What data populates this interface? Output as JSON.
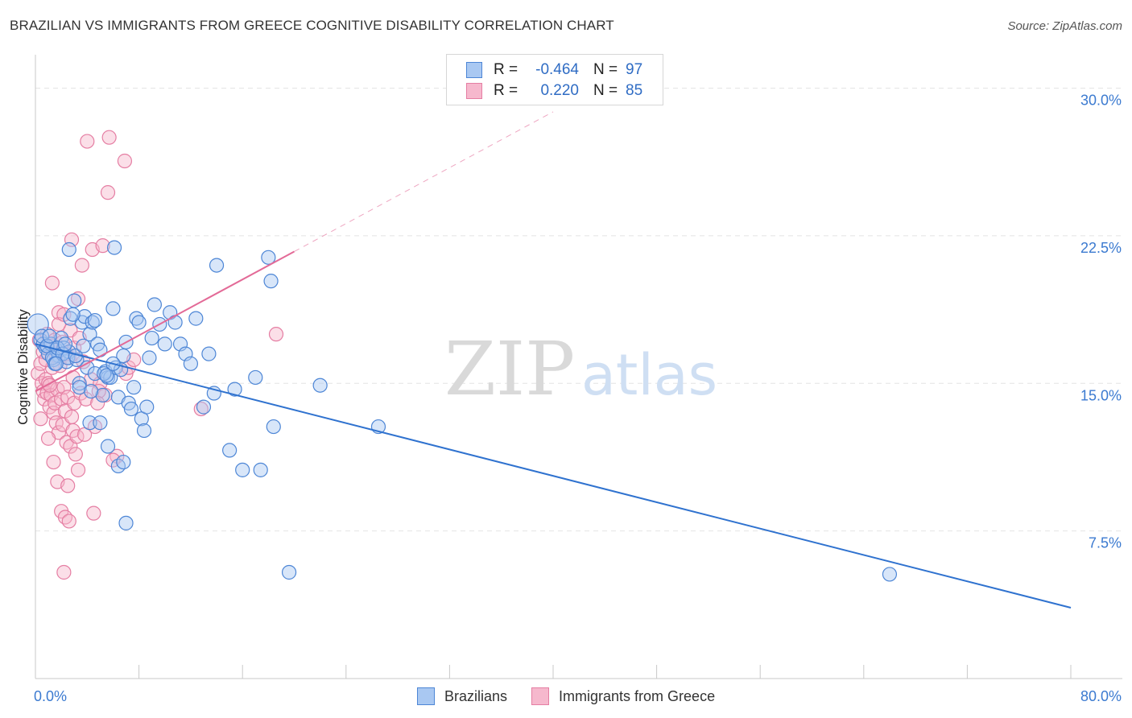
{
  "title": "BRAZILIAN VS IMMIGRANTS FROM GREECE COGNITIVE DISABILITY CORRELATION CHART",
  "source": "Source: ZipAtlas.com",
  "watermark": {
    "zip": "ZIP",
    "atlas": "atlas"
  },
  "legend": {
    "rows": [
      {
        "r_label": "R =",
        "r_value": "-0.464",
        "n_label": "N =",
        "n_value": "97"
      },
      {
        "r_label": "R =",
        "r_value": "0.220",
        "n_label": "N =",
        "n_value": "85"
      }
    ]
  },
  "colors": {
    "blue_fill": "#a9c8f2",
    "blue_stroke": "#4d86d6",
    "blue_line": "#2f72cf",
    "pink_fill": "#f6b8cd",
    "pink_stroke": "#e57ea3",
    "pink_line": "#e36a97",
    "grid": "#e4e4e4",
    "tick_text": "#3b7ad0"
  },
  "chart_data": {
    "type": "scatter",
    "title": "BRAZILIAN VS IMMIGRANTS FROM GREECE COGNITIVE DISABILITY CORRELATION CHART",
    "xlabel": "",
    "ylabel": "Cognitive Disability",
    "xlim": [
      0,
      80
    ],
    "ylim": [
      0,
      31.7
    ],
    "x_tick_labels": [
      {
        "value": 0,
        "label": "0.0%"
      },
      {
        "value": 80,
        "label": "80.0%"
      }
    ],
    "y_tick_labels": [
      {
        "value": 7.5,
        "label": "7.5%"
      },
      {
        "value": 15.0,
        "label": "15.0%"
      },
      {
        "value": 22.5,
        "label": "22.5%"
      },
      {
        "value": 30.0,
        "label": "30.0%"
      }
    ],
    "grid": true,
    "legend_position": "top-center",
    "series": [
      {
        "name": "Brazilians",
        "r": -0.464,
        "n": 97,
        "trend": {
          "x0": 0,
          "y0": 17.0,
          "x1": 80,
          "y1": 3.6
        },
        "points": [
          [
            0.2,
            18.0
          ],
          [
            0.4,
            17.2
          ],
          [
            0.6,
            17.0
          ],
          [
            0.8,
            16.8
          ],
          [
            1.0,
            16.5
          ],
          [
            1.2,
            17.0
          ],
          [
            1.4,
            16.2
          ],
          [
            1.6,
            16.7
          ],
          [
            1.8,
            16.4
          ],
          [
            2.0,
            17.3
          ],
          [
            2.2,
            16.8
          ],
          [
            2.4,
            16.1
          ],
          [
            2.6,
            16.6
          ],
          [
            0.5,
            17.4
          ],
          [
            0.9,
            16.9
          ],
          [
            1.1,
            17.4
          ],
          [
            1.3,
            16.3
          ],
          [
            1.5,
            16.0
          ],
          [
            1.7,
            16.8
          ],
          [
            2.1,
            16.5
          ],
          [
            2.3,
            17.0
          ],
          [
            2.5,
            16.3
          ],
          [
            2.7,
            18.3
          ],
          [
            3.0,
            19.2
          ],
          [
            3.2,
            16.2
          ],
          [
            3.4,
            15.0
          ],
          [
            3.6,
            18.1
          ],
          [
            3.8,
            18.4
          ],
          [
            4.0,
            15.8
          ],
          [
            4.2,
            17.5
          ],
          [
            4.4,
            18.1
          ],
          [
            4.6,
            18.2
          ],
          [
            4.8,
            17.0
          ],
          [
            5.0,
            16.7
          ],
          [
            5.2,
            14.4
          ],
          [
            5.4,
            15.6
          ],
          [
            5.6,
            15.3
          ],
          [
            5.8,
            15.3
          ],
          [
            6.0,
            18.8
          ],
          [
            6.2,
            15.8
          ],
          [
            6.4,
            14.3
          ],
          [
            6.6,
            15.7
          ],
          [
            6.8,
            16.4
          ],
          [
            7.0,
            17.1
          ],
          [
            7.2,
            14.0
          ],
          [
            7.4,
            13.7
          ],
          [
            7.6,
            14.8
          ],
          [
            7.8,
            18.3
          ],
          [
            8.0,
            18.1
          ],
          [
            8.2,
            13.2
          ],
          [
            8.4,
            12.6
          ],
          [
            8.6,
            13.8
          ],
          [
            8.8,
            16.3
          ],
          [
            9.0,
            17.3
          ],
          [
            9.2,
            19.0
          ],
          [
            9.6,
            18.0
          ],
          [
            10.0,
            17.0
          ],
          [
            10.4,
            18.6
          ],
          [
            10.8,
            18.1
          ],
          [
            11.2,
            17.0
          ],
          [
            11.6,
            16.5
          ],
          [
            12.0,
            16.0
          ],
          [
            12.4,
            18.3
          ],
          [
            13.0,
            13.8
          ],
          [
            13.4,
            16.5
          ],
          [
            13.8,
            14.5
          ],
          [
            14.0,
            21.0
          ],
          [
            2.6,
            21.8
          ],
          [
            6.1,
            21.9
          ],
          [
            15.0,
            11.6
          ],
          [
            15.4,
            14.7
          ],
          [
            16.0,
            10.6
          ],
          [
            17.0,
            15.3
          ],
          [
            17.4,
            10.6
          ],
          [
            18.0,
            21.4
          ],
          [
            18.2,
            20.2
          ],
          [
            18.4,
            12.8
          ],
          [
            22.0,
            14.9
          ],
          [
            26.5,
            12.8
          ],
          [
            3.4,
            14.8
          ],
          [
            4.2,
            13.0
          ],
          [
            5.0,
            13.0
          ],
          [
            5.6,
            11.8
          ],
          [
            6.4,
            10.8
          ],
          [
            6.8,
            11.0
          ],
          [
            7.0,
            7.9
          ],
          [
            4.6,
            15.5
          ],
          [
            5.3,
            15.5
          ],
          [
            19.6,
            5.4
          ],
          [
            66.0,
            5.3
          ],
          [
            1.6,
            16.0
          ],
          [
            3.1,
            16.4
          ],
          [
            4.3,
            14.6
          ],
          [
            2.9,
            18.5
          ],
          [
            5.5,
            15.4
          ],
          [
            6.0,
            16.0
          ],
          [
            3.7,
            16.9
          ]
        ]
      },
      {
        "name": "Immigrants from Greece",
        "r": 0.22,
        "n": 85,
        "trend_solid": {
          "x0": 0,
          "y0": 14.6,
          "x1": 20.0,
          "y1": 21.7
        },
        "trend_dashed": {
          "x0": 20.0,
          "y0": 21.7,
          "x1": 40.0,
          "y1": 28.8
        },
        "points": [
          [
            0.2,
            15.5
          ],
          [
            0.4,
            16.0
          ],
          [
            0.5,
            15.0
          ],
          [
            0.6,
            14.6
          ],
          [
            0.7,
            14.2
          ],
          [
            0.8,
            15.2
          ],
          [
            0.9,
            14.5
          ],
          [
            1.0,
            15.0
          ],
          [
            1.1,
            13.8
          ],
          [
            1.2,
            14.4
          ],
          [
            1.3,
            15.8
          ],
          [
            1.4,
            13.5
          ],
          [
            1.5,
            14.0
          ],
          [
            1.6,
            13.0
          ],
          [
            1.7,
            14.7
          ],
          [
            1.8,
            12.5
          ],
          [
            1.9,
            15.9
          ],
          [
            2.0,
            14.2
          ],
          [
            2.1,
            12.9
          ],
          [
            2.2,
            14.8
          ],
          [
            2.3,
            13.6
          ],
          [
            2.4,
            12.0
          ],
          [
            2.5,
            14.3
          ],
          [
            2.6,
            16.3
          ],
          [
            2.7,
            11.8
          ],
          [
            2.8,
            13.3
          ],
          [
            2.9,
            12.6
          ],
          [
            3.0,
            14.0
          ],
          [
            3.1,
            11.4
          ],
          [
            3.2,
            12.3
          ],
          [
            0.3,
            17.2
          ],
          [
            0.6,
            16.6
          ],
          [
            0.9,
            17.5
          ],
          [
            1.2,
            16.9
          ],
          [
            1.5,
            17.2
          ],
          [
            1.8,
            18.6
          ],
          [
            2.1,
            17.1
          ],
          [
            2.4,
            16.5
          ],
          [
            2.7,
            17.7
          ],
          [
            3.0,
            16.8
          ],
          [
            1.3,
            20.1
          ],
          [
            1.8,
            18.0
          ],
          [
            2.2,
            18.5
          ],
          [
            2.8,
            22.3
          ],
          [
            3.3,
            19.3
          ],
          [
            3.6,
            21.0
          ],
          [
            4.0,
            27.3
          ],
          [
            4.4,
            21.8
          ],
          [
            5.2,
            22.0
          ],
          [
            5.7,
            27.5
          ],
          [
            5.6,
            24.7
          ],
          [
            6.9,
            26.3
          ],
          [
            7.0,
            15.5
          ],
          [
            7.2,
            15.8
          ],
          [
            7.6,
            16.2
          ],
          [
            3.5,
            14.5
          ],
          [
            3.9,
            14.2
          ],
          [
            4.3,
            15.2
          ],
          [
            4.6,
            12.8
          ],
          [
            5.0,
            15.0
          ],
          [
            5.4,
            14.4
          ],
          [
            1.0,
            12.2
          ],
          [
            1.4,
            11.0
          ],
          [
            1.7,
            10.0
          ],
          [
            2.0,
            8.5
          ],
          [
            2.3,
            8.2
          ],
          [
            2.6,
            8.0
          ],
          [
            3.3,
            10.6
          ],
          [
            3.8,
            12.4
          ],
          [
            6.3,
            11.3
          ],
          [
            2.2,
            5.4
          ],
          [
            12.8,
            13.7
          ],
          [
            18.6,
            17.5
          ],
          [
            1.6,
            16.4
          ],
          [
            0.8,
            16.2
          ],
          [
            2.9,
            15.3
          ],
          [
            3.4,
            17.3
          ],
          [
            3.7,
            16.1
          ],
          [
            4.9,
            14.6
          ],
          [
            1.1,
            14.9
          ],
          [
            0.4,
            13.2
          ],
          [
            2.5,
            9.8
          ],
          [
            4.5,
            8.4
          ],
          [
            6.0,
            11.1
          ],
          [
            4.8,
            14.0
          ]
        ]
      }
    ]
  },
  "bottom_legend": [
    "Brazilians",
    "Immigrants from Greece"
  ]
}
